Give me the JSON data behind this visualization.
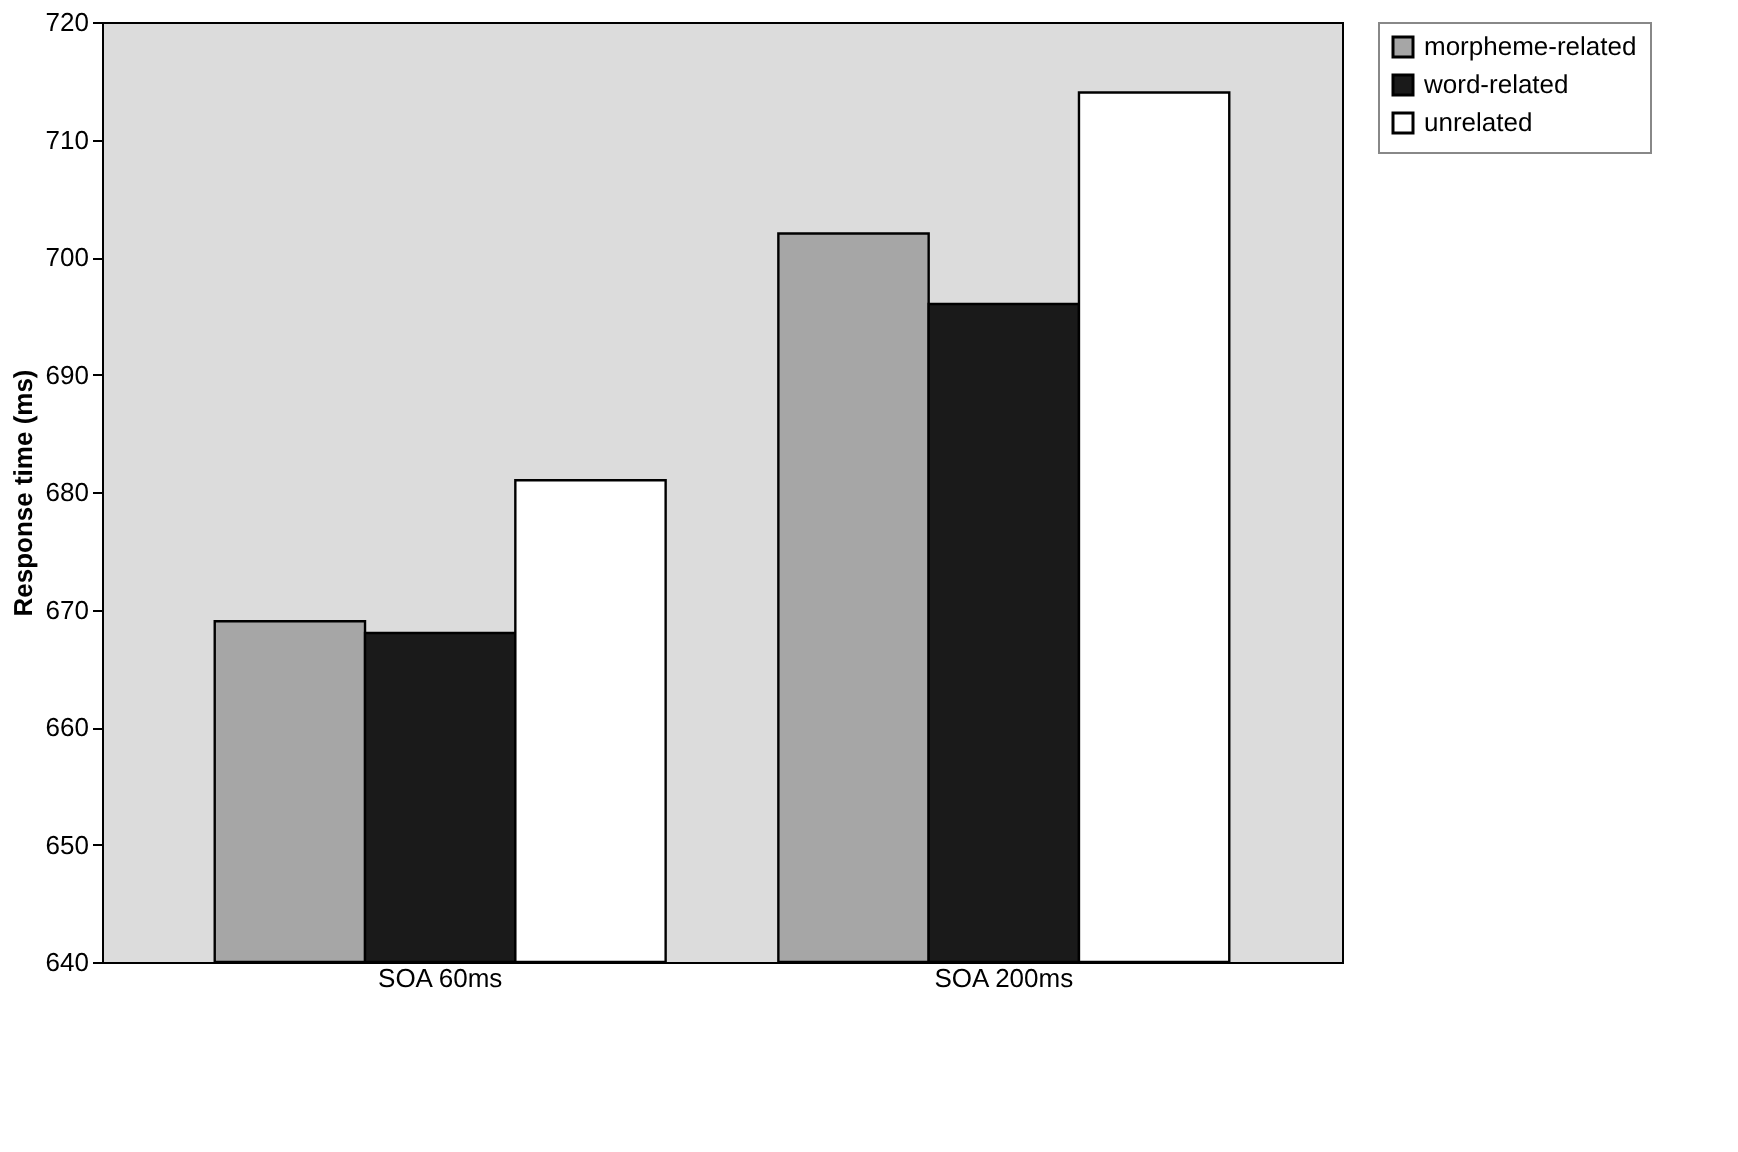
{
  "chart_data": {
    "type": "bar",
    "ylabel": "Response time (ms)",
    "categories": [
      "SOA 60ms",
      "SOA 200ms"
    ],
    "series": [
      {
        "name": "morpheme-related",
        "color": "#a6a6a6",
        "values": [
          669,
          702
        ]
      },
      {
        "name": "word-related",
        "color": "#1a1a1a",
        "values": [
          668,
          696
        ]
      },
      {
        "name": "unrelated",
        "color": "#ffffff",
        "values": [
          681,
          714
        ]
      }
    ],
    "ylim": [
      640,
      720
    ],
    "yticks": [
      640,
      650,
      660,
      670,
      680,
      690,
      700,
      710,
      720
    ],
    "grid": false,
    "legend": "right"
  }
}
